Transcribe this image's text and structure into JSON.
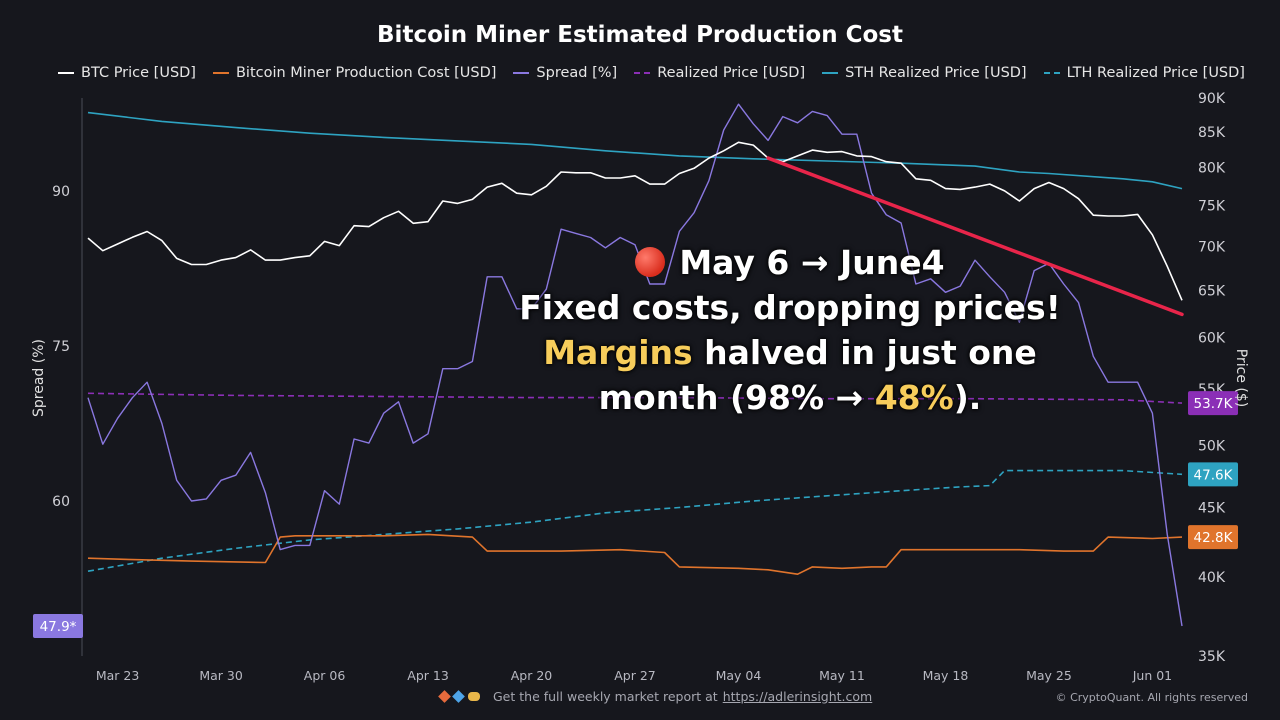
{
  "title": "Bitcoin Miner Estimated Production Cost",
  "legend": [
    {
      "name": "BTC Price [USD]",
      "color": "#ffffff",
      "dash": false
    },
    {
      "name": "Bitcoin Miner Production Cost [USD]",
      "color": "#e0742c",
      "dash": false
    },
    {
      "name": "Spread [%]",
      "color": "#8a78e0",
      "dash": false
    },
    {
      "name": "Realized Price [USD]",
      "color": "#8b2fb6",
      "dash": true
    },
    {
      "name": "STH Realized Price [USD]",
      "color": "#2ea3c1",
      "dash": false
    },
    {
      "name": "LTH Realized Price [USD]",
      "color": "#2ea3c1",
      "dash": true
    }
  ],
  "annotation": {
    "line1_text": "May 6 → June4",
    "line2": "Fixed costs, dropping prices!",
    "line3_hl": "Margins",
    "line3_rest": " halved in just one",
    "line4_pre": "month (98% → ",
    "line4_hl": "48%",
    "line4_post": ")."
  },
  "footer": {
    "text": "Get the full weekly market report at",
    "link": "https://adlerinsight.com",
    "copyright": "© CryptoQuant. All rights reserved"
  },
  "chart_data": {
    "type": "line",
    "title": "Bitcoin Miner Estimated Production Cost",
    "x_tick_labels": [
      "Mar 23",
      "Mar 30",
      "Apr 06",
      "Apr 13",
      "Apr 20",
      "Apr 27",
      "May 04",
      "May 11",
      "May 18",
      "May 25",
      "Jun 01"
    ],
    "x_tick_days": [
      2,
      9,
      16,
      23,
      30,
      37,
      44,
      51,
      58,
      65,
      72
    ],
    "x_range_days": [
      0,
      74
    ],
    "y_left": {
      "label": "Spread (%)",
      "ticks": [
        60,
        75,
        90
      ],
      "range": [
        45,
        99
      ]
    },
    "y_right": {
      "label": "Price ($)",
      "ticks": [
        "35K",
        "40K",
        "45K",
        "50K",
        "55K",
        "60K",
        "65K",
        "70K",
        "75K",
        "80K",
        "85K",
        "90K"
      ],
      "tick_values": [
        35000,
        40000,
        45000,
        50000,
        55000,
        60000,
        65000,
        70000,
        75000,
        80000,
        85000,
        90000
      ],
      "scale": "log",
      "range": [
        35000,
        90000
      ]
    },
    "badges": [
      {
        "text": "53.7K",
        "value": 53700,
        "axis": "right",
        "color": "#8b2fb6"
      },
      {
        "text": "47.6K",
        "value": 47600,
        "axis": "right",
        "color": "#2ea3c1"
      },
      {
        "text": "42.8K",
        "value": 42800,
        "axis": "right",
        "color": "#e0742c"
      },
      {
        "text": "47.9*",
        "value": 47.9,
        "axis": "left",
        "color": "#8a78e0"
      }
    ],
    "trend_line": {
      "color": "#e8254a",
      "from": {
        "day": 46,
        "value": 81300
      },
      "to": {
        "day": 74,
        "value": 62400
      }
    },
    "series": [
      {
        "name": "BTC Price [USD]",
        "axis": "right",
        "color": "#ffffff",
        "dash": false,
        "x": [
          0,
          1,
          2,
          3,
          4,
          5,
          6,
          7,
          8,
          9,
          10,
          11,
          12,
          13,
          14,
          15,
          16,
          17,
          18,
          19,
          20,
          21,
          22,
          23,
          24,
          25,
          26,
          27,
          28,
          29,
          30,
          31,
          32,
          33,
          34,
          35,
          36,
          37,
          38,
          39,
          40,
          41,
          42,
          43,
          44,
          45,
          46,
          47,
          48,
          49,
          50,
          51,
          52,
          53,
          54,
          55,
          56,
          57,
          58,
          59,
          60,
          61,
          62,
          63,
          64,
          65,
          66,
          67,
          68,
          69,
          70,
          71,
          72,
          73,
          74
        ],
        "values": [
          71000,
          69500,
          70300,
          71100,
          71800,
          70700,
          68600,
          67900,
          67900,
          68400,
          68700,
          69600,
          68400,
          68400,
          68700,
          68900,
          70600,
          70100,
          72500,
          72400,
          73500,
          74300,
          72800,
          73000,
          75600,
          75300,
          75800,
          77400,
          77900,
          76600,
          76400,
          77500,
          79400,
          79300,
          79300,
          78600,
          78600,
          78900,
          77800,
          77800,
          79200,
          79900,
          81300,
          82300,
          83500,
          83100,
          81300,
          80800,
          81600,
          82400,
          82100,
          82200,
          81600,
          81500,
          80800,
          80600,
          78500,
          78300,
          77200,
          77100,
          77400,
          77800,
          76900,
          75600,
          77200,
          78000,
          77200,
          75900,
          73800,
          73700,
          73700,
          73900,
          71400,
          67700,
          63900
        ]
      },
      {
        "name": "Bitcoin Miner Production Cost [USD]",
        "axis": "right",
        "color": "#e0742c",
        "dash": false,
        "x": [
          0,
          3,
          7,
          12,
          13,
          14,
          20,
          23,
          26,
          27,
          28,
          32,
          36,
          39,
          40,
          44,
          46,
          48,
          49,
          51,
          53,
          54,
          55,
          56,
          59,
          63,
          66,
          68,
          69,
          72,
          74
        ],
        "values": [
          41300,
          41200,
          41100,
          41000,
          42800,
          42900,
          42900,
          43000,
          42800,
          41800,
          41800,
          41800,
          41900,
          41700,
          40700,
          40600,
          40500,
          40200,
          40700,
          40600,
          40700,
          40700,
          41900,
          41900,
          41900,
          41900,
          41800,
          41800,
          42800,
          42700,
          42800
        ]
      },
      {
        "name": "Spread [%]",
        "axis": "left",
        "color": "#8a78e0",
        "dash": false,
        "x": [
          0,
          1,
          2,
          3,
          4,
          5,
          6,
          7,
          8,
          9,
          10,
          11,
          12,
          13,
          14,
          15,
          16,
          17,
          18,
          19,
          20,
          21,
          22,
          23,
          24,
          25,
          26,
          27,
          28,
          29,
          30,
          31,
          32,
          33,
          34,
          35,
          36,
          37,
          38,
          39,
          40,
          41,
          42,
          43,
          44,
          45,
          46,
          47,
          48,
          49,
          50,
          51,
          52,
          53,
          54,
          55,
          56,
          57,
          58,
          59,
          60,
          61,
          62,
          63,
          64,
          65,
          66,
          67,
          68,
          69,
          70,
          71,
          72,
          73,
          74
        ],
        "values": [
          70,
          65.5,
          68,
          70,
          71.5,
          67.5,
          62,
          60,
          60.2,
          62,
          62.5,
          64.7,
          60.8,
          55.3,
          55.7,
          55.7,
          61,
          59.7,
          66,
          65.6,
          68.5,
          69.6,
          65.6,
          66.5,
          72.8,
          72.8,
          73.5,
          81.7,
          81.7,
          78.6,
          78.6,
          80.5,
          86.3,
          85.9,
          85.5,
          84.5,
          85.5,
          84.8,
          81,
          81,
          86.1,
          87.9,
          91,
          95.9,
          98.4,
          96.5,
          94.9,
          97.2,
          96.6,
          97.7,
          97.3,
          95.5,
          95.5,
          89.8,
          87.7,
          86.9,
          81,
          81.5,
          80.2,
          80.8,
          83.3,
          81.7,
          80.2,
          77.3,
          82.3,
          83,
          81,
          79.2,
          74,
          71.5,
          71.5,
          71.5,
          68.5,
          56.8,
          47.9
        ]
      },
      {
        "name": "Realized Price [USD]",
        "axis": "right",
        "color": "#8b2fb6",
        "dash": true,
        "x": [
          0,
          10,
          20,
          30,
          40,
          50,
          60,
          70,
          74
        ],
        "values": [
          54600,
          54400,
          54300,
          54200,
          54200,
          54100,
          54100,
          54000,
          53700
        ]
      },
      {
        "name": "STH Realized Price [USD]",
        "axis": "right",
        "color": "#2ea3c1",
        "dash": false,
        "x": [
          0,
          5,
          10,
          15,
          20,
          25,
          30,
          35,
          40,
          45,
          50,
          55,
          60,
          63,
          65,
          70,
          72,
          74
        ],
        "values": [
          87800,
          86500,
          85600,
          84800,
          84200,
          83700,
          83200,
          82300,
          81600,
          81200,
          80900,
          80600,
          80200,
          79400,
          79200,
          78500,
          78100,
          77200
        ]
      },
      {
        "name": "LTH Realized Price [USD]",
        "axis": "right",
        "color": "#2ea3c1",
        "dash": true,
        "x": [
          0,
          5,
          10,
          15,
          20,
          25,
          30,
          35,
          40,
          45,
          50,
          55,
          59,
          61,
          62,
          65,
          70,
          74
        ],
        "values": [
          40400,
          41300,
          42000,
          42600,
          43000,
          43400,
          43900,
          44600,
          45000,
          45500,
          45900,
          46300,
          46600,
          46700,
          47900,
          47900,
          47900,
          47600
        ]
      }
    ]
  }
}
